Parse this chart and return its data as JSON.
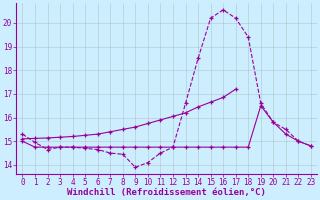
{
  "line1_x": [
    0,
    1,
    2,
    3,
    4,
    5,
    6,
    7,
    8,
    9,
    10,
    11,
    12,
    13,
    14,
    15,
    16,
    17,
    18,
    19,
    20,
    21,
    22,
    23
  ],
  "line1_y": [
    15.3,
    14.95,
    14.65,
    14.75,
    14.75,
    14.7,
    14.65,
    14.5,
    14.45,
    13.9,
    14.1,
    14.5,
    14.75,
    16.6,
    18.5,
    20.2,
    20.55,
    20.2,
    19.4,
    16.6,
    15.8,
    15.5,
    15.0,
    14.8
  ],
  "line2_x": [
    0,
    1,
    2,
    3,
    4,
    5,
    6,
    7,
    8,
    9,
    10,
    11,
    12,
    13,
    14,
    15,
    16,
    17
  ],
  "line2_y": [
    15.1,
    15.12,
    15.14,
    15.17,
    15.2,
    15.25,
    15.3,
    15.4,
    15.5,
    15.6,
    15.75,
    15.9,
    16.05,
    16.2,
    16.45,
    16.65,
    16.85,
    17.2
  ],
  "line3_x": [
    0,
    1,
    2,
    3,
    4,
    5,
    6,
    7,
    8,
    9,
    10,
    11,
    12,
    13,
    14,
    15,
    16,
    17,
    18,
    19,
    20,
    21,
    22,
    23
  ],
  "line3_y": [
    15.0,
    14.75,
    14.75,
    14.75,
    14.75,
    14.75,
    14.75,
    14.75,
    14.75,
    14.75,
    14.75,
    14.75,
    14.75,
    14.75,
    14.75,
    14.75,
    14.75,
    14.75,
    14.75,
    16.5,
    15.8,
    15.3,
    15.0,
    14.8
  ],
  "xlim": [
    -0.5,
    23.5
  ],
  "ylim": [
    13.6,
    20.85
  ],
  "yticks": [
    14,
    15,
    16,
    17,
    18,
    19,
    20
  ],
  "xticks": [
    0,
    1,
    2,
    3,
    4,
    5,
    6,
    7,
    8,
    9,
    10,
    11,
    12,
    13,
    14,
    15,
    16,
    17,
    18,
    19,
    20,
    21,
    22,
    23
  ],
  "xlabel": "Windchill (Refroidissement éolien,°C)",
  "line_color": "#990099",
  "bg_color": "#cceeff",
  "grid_color": "#b8d8d8",
  "tick_label_fontsize": 5.5,
  "xlabel_fontsize": 6.5
}
